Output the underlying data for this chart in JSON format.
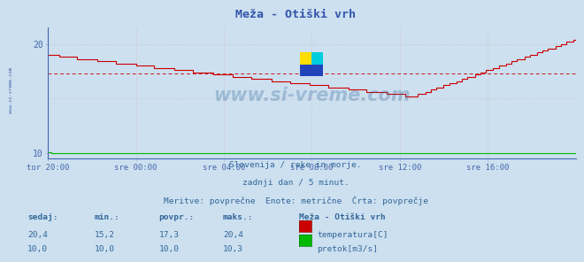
{
  "title": "Meža - Otiški vrh",
  "bg_color": "#cce0f0",
  "plot_bg_color": "#cce0f0",
  "temp_color": "#cc0000",
  "flow_color": "#00bb00",
  "avg_line_color": "#cc0000",
  "axis_label_color": "#4466aa",
  "text_color": "#336699",
  "title_color": "#3355aa",
  "ylim": [
    9.5,
    21.5
  ],
  "yticks": [
    10,
    20
  ],
  "avg_temp": 17.3,
  "xtick_labels": [
    "tor 20:00",
    "sre 00:00",
    "sre 04:00",
    "sre 08:00",
    "sre 12:00",
    "sre 16:00"
  ],
  "xtick_positions": [
    0,
    48,
    96,
    144,
    192,
    240
  ],
  "subtitle1": "Slovenija / reke in morje.",
  "subtitle2": "zadnji dan / 5 minut.",
  "subtitle3": "Meritve: povprečne  Enote: metrične  Črta: povprečje",
  "label_sedaj": "sedaj:",
  "label_min": "min.:",
  "label_povpr": "povpr.:",
  "label_maks": "maks.:",
  "label_station": "Meža - Otiški vrh",
  "label_temp": "temperatura[C]",
  "label_flow": "pretok[m3/s]",
  "watermark": "www.si-vreme.com",
  "left_label": "www.si-vreme.com",
  "temp_rows": [
    "20,4",
    "15,2",
    "17,3",
    "20,4"
  ],
  "flow_rows": [
    "10,0",
    "10,0",
    "10,0",
    "10,3"
  ]
}
